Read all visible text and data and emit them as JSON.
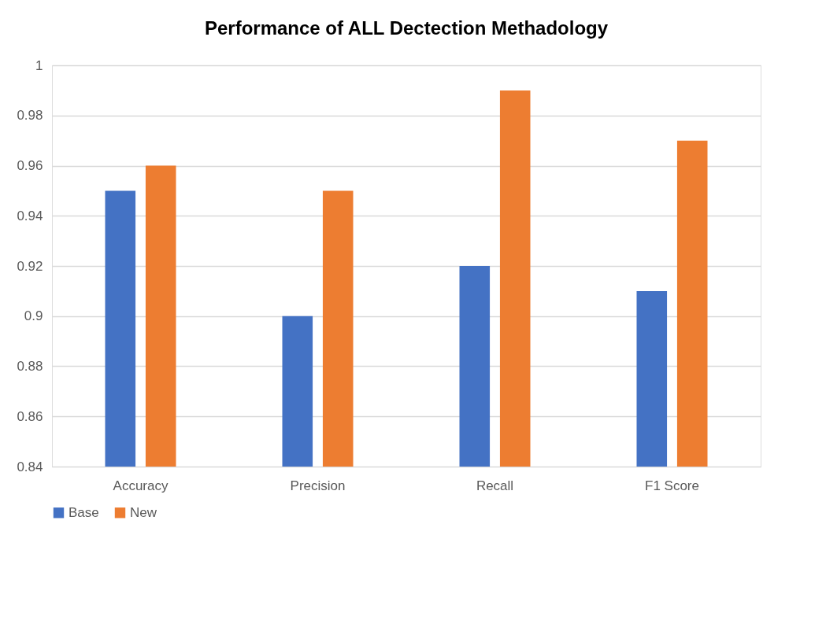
{
  "chart_data": {
    "type": "bar",
    "title": "Performance of ALL Dectection Methadology",
    "categories": [
      "Accuracy",
      "Precision",
      "Recall",
      "F1 Score"
    ],
    "series": [
      {
        "name": "Base",
        "color": "#4472c4",
        "values": [
          0.95,
          0.9,
          0.92,
          0.91
        ]
      },
      {
        "name": "New",
        "color": "#ed7d31",
        "values": [
          0.96,
          0.95,
          0.99,
          0.97
        ]
      }
    ],
    "ylim": [
      0.84,
      1
    ],
    "yticks": [
      0.84,
      0.86,
      0.88,
      0.9,
      0.92,
      0.94,
      0.96,
      0.98,
      1
    ],
    "grid": "y",
    "legend": "bottom"
  }
}
